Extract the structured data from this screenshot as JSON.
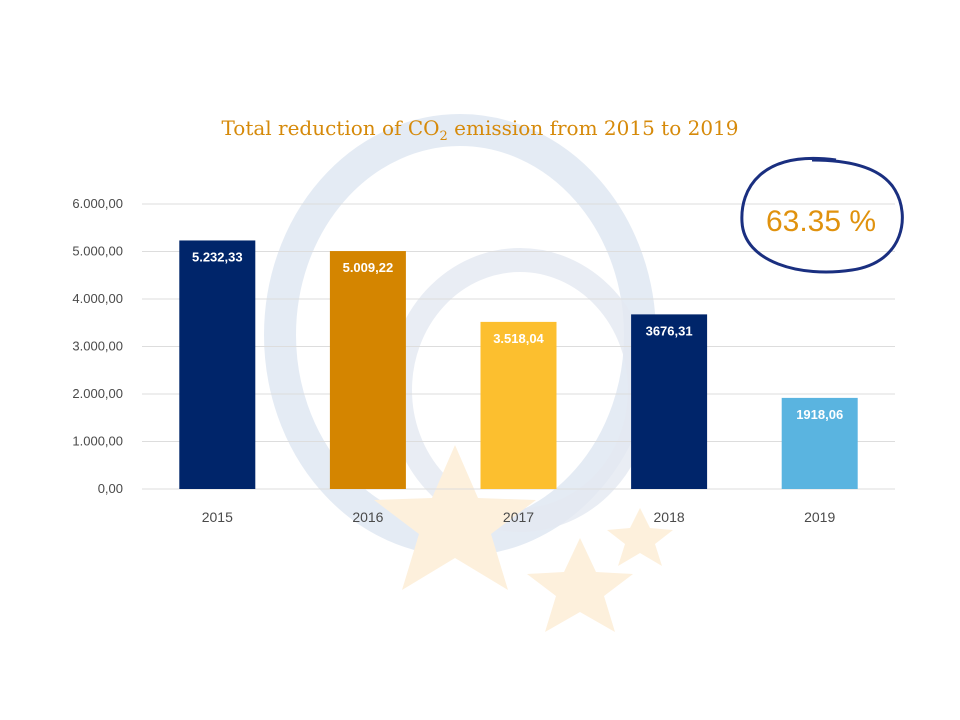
{
  "chart_data": {
    "type": "bar",
    "title_prefix": "Total reduction of CO",
    "title_sub": "2",
    "title_suffix": " emission from 2015 to 2019",
    "categories": [
      "2015",
      "2016",
      "2017",
      "2018",
      "2019"
    ],
    "values": [
      5232.33,
      5009.22,
      3518.04,
      3676.31,
      1918.06
    ],
    "data_labels": [
      "5.232,33",
      "5.009,22",
      "3.518,04",
      "3676,31",
      "1918,06"
    ],
    "bar_colors": [
      "#00256A",
      "#D48500",
      "#FCBF2F",
      "#00256A",
      "#5AB4E0"
    ],
    "yticks": [
      0,
      1000,
      2000,
      3000,
      4000,
      5000,
      6000
    ],
    "ytick_labels": [
      "0,00",
      "1.000,00",
      "2.000,00",
      "3.000,00",
      "4.000,00",
      "5.000,00",
      "6.000,00"
    ],
    "ylim": [
      0,
      6000
    ],
    "grid": true,
    "legend": "none",
    "xlabel": "",
    "ylabel": "",
    "annotation": "63.35 %",
    "annotation_color": "#E0920E",
    "annotation_ring_color": "#1A2F80"
  }
}
